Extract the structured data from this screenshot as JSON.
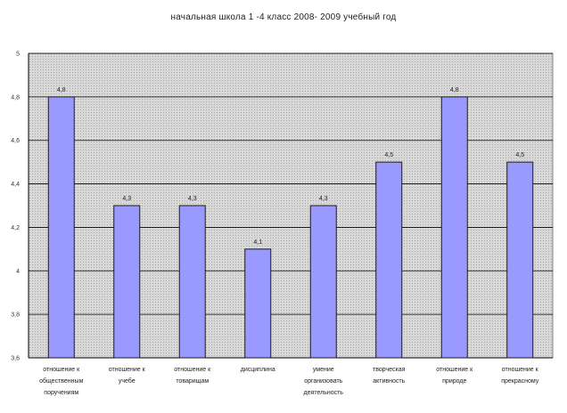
{
  "chart_data": {
    "type": "bar",
    "title": "начальная школа 1 -4 класс 2008- 2009 учебный год",
    "xlabel": "",
    "ylabel": "",
    "ylim": [
      3.6,
      5
    ],
    "yticks": [
      {
        "value": 3.6,
        "label": "3,6"
      },
      {
        "value": 3.8,
        "label": "3,8"
      },
      {
        "value": 4.0,
        "label": "4"
      },
      {
        "value": 4.2,
        "label": "4,2"
      },
      {
        "value": 4.4,
        "label": "4,4"
      },
      {
        "value": 4.6,
        "label": "4,6"
      },
      {
        "value": 4.8,
        "label": "4,8"
      },
      {
        "value": 5.0,
        "label": "5"
      }
    ],
    "grid": true,
    "legend": "none",
    "categories": [
      [
        "отношение к",
        "общественным",
        "поручениям"
      ],
      [
        "отношение к",
        "учебе"
      ],
      [
        "отношение к",
        "товарищам"
      ],
      [
        "дисциплина"
      ],
      [
        "умение",
        "организовать",
        "деятельность"
      ],
      [
        "творческая",
        "активность"
      ],
      [
        "отношение к",
        "природе"
      ],
      [
        "отношение к",
        "прекрасному"
      ]
    ],
    "values": [
      4.8,
      4.3,
      4.3,
      4.1,
      4.3,
      4.5,
      4.8,
      4.5
    ],
    "value_labels": [
      "4,8",
      "4,3",
      "4,3",
      "4,1",
      "4,3",
      "4,5",
      "4,8",
      "4,5"
    ],
    "colors": {
      "bar_fill": "#9999ff",
      "bar_stroke": "#1a1a1a",
      "plot_bg": "#c8c8c8",
      "grid": "#000000"
    }
  }
}
